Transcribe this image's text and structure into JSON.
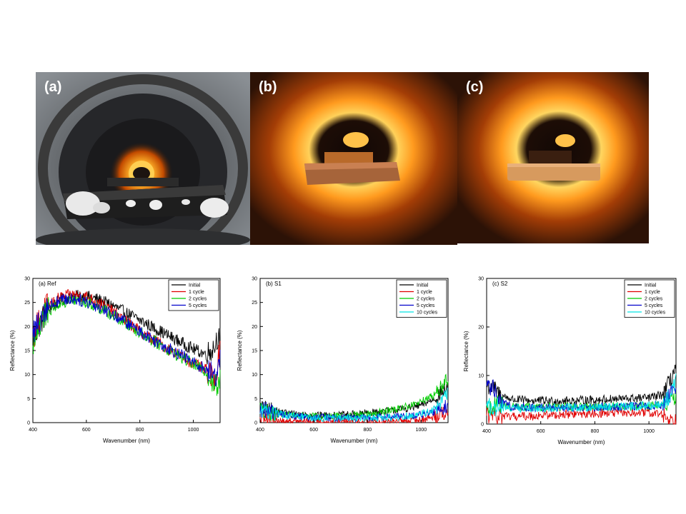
{
  "photos": [
    {
      "label": "(a)"
    },
    {
      "label": "(b)"
    },
    {
      "label": "(c)"
    }
  ],
  "chart_data": [
    {
      "type": "line",
      "panel_text": "(a) Ref",
      "xlabel": "Wavenumber (nm)",
      "ylabel": "Reflectance (%)",
      "xlim": [
        400,
        1100
      ],
      "ylim": [
        0,
        30
      ],
      "xticks": [
        400,
        600,
        800,
        1000
      ],
      "yticks": [
        0,
        5,
        10,
        15,
        20,
        25,
        30
      ],
      "legend_position": "top-right",
      "noise": 1.3,
      "series": [
        {
          "name": "Initial",
          "color": "#000000",
          "x": [
            400,
            420,
            450,
            500,
            550,
            600,
            650,
            700,
            750,
            800,
            850,
            900,
            950,
            1000,
            1050,
            1080,
            1090,
            1100
          ],
          "y": [
            17,
            20,
            23,
            25.5,
            26.3,
            26.3,
            25.5,
            24.3,
            22.8,
            21.3,
            19.8,
            18.3,
            16.8,
            15.3,
            14.2,
            16.0,
            18.0,
            17.0
          ]
        },
        {
          "name": "1 cycle",
          "color": "#e00000",
          "x": [
            400,
            420,
            450,
            500,
            550,
            600,
            650,
            700,
            750,
            800,
            850,
            900,
            950,
            1000,
            1050,
            1080,
            1090,
            1100
          ],
          "y": [
            17,
            21,
            24,
            26,
            26.6,
            26.2,
            24.8,
            23.0,
            21.0,
            19.0,
            17.2,
            15.6,
            14.0,
            12.3,
            10.8,
            9.0,
            12.0,
            16.0
          ]
        },
        {
          "name": "2 cycles",
          "color": "#00cc00",
          "x": [
            400,
            420,
            450,
            500,
            550,
            600,
            650,
            700,
            750,
            800,
            850,
            900,
            950,
            1000,
            1050,
            1080,
            1090,
            1100
          ],
          "y": [
            16.5,
            20,
            23,
            24.8,
            25.5,
            25.0,
            23.8,
            22.3,
            20.5,
            18.8,
            17.0,
            15.4,
            13.8,
            12.2,
            10.5,
            8.0,
            7.0,
            9.0
          ]
        },
        {
          "name": "5 cycles",
          "color": "#0000cc",
          "x": [
            400,
            420,
            450,
            500,
            550,
            600,
            650,
            700,
            750,
            800,
            850,
            900,
            950,
            1000,
            1050,
            1080,
            1090,
            1100
          ],
          "y": [
            18,
            21,
            24,
            25.5,
            25.8,
            25.2,
            24.0,
            22.5,
            20.8,
            19.0,
            17.3,
            15.7,
            14.2,
            12.5,
            11.0,
            9.5,
            11.0,
            13.0
          ]
        }
      ]
    },
    {
      "type": "line",
      "panel_text": "(b) S1",
      "xlabel": "Wavenumber (nm)",
      "ylabel": "Reflectance (%)",
      "xlim": [
        400,
        1100
      ],
      "ylim": [
        0,
        30
      ],
      "xticks": [
        400,
        600,
        800,
        1000
      ],
      "yticks": [
        0,
        5,
        10,
        15,
        20,
        25,
        30
      ],
      "legend_position": "top-right",
      "noise": 0.8,
      "series": [
        {
          "name": "Initial",
          "color": "#000000",
          "x": [
            400,
            450,
            500,
            600,
            700,
            800,
            850,
            900,
            950,
            1000,
            1050,
            1080,
            1100
          ],
          "y": [
            3.0,
            2.5,
            2.0,
            1.5,
            1.5,
            2.0,
            2.3,
            2.6,
            3.0,
            3.6,
            5.0,
            6.5,
            7.5
          ]
        },
        {
          "name": "1 cycle",
          "color": "#e00000",
          "x": [
            400,
            450,
            500,
            600,
            700,
            800,
            900,
            1000,
            1050,
            1080,
            1100
          ],
          "y": [
            0.3,
            0.3,
            0.2,
            0.2,
            0.2,
            0.2,
            0.2,
            0.6,
            1.2,
            2.0,
            2.5
          ]
        },
        {
          "name": "2 cycles",
          "color": "#00cc00",
          "x": [
            400,
            450,
            500,
            600,
            700,
            800,
            850,
            900,
            950,
            1000,
            1050,
            1080,
            1100
          ],
          "y": [
            2.5,
            2.0,
            1.6,
            1.3,
            1.3,
            1.8,
            2.2,
            2.7,
            3.4,
            4.3,
            5.8,
            7.8,
            9.0
          ]
        },
        {
          "name": "5 cycles",
          "color": "#0000cc",
          "x": [
            400,
            450,
            500,
            600,
            700,
            800,
            900,
            1000,
            1050,
            1080,
            1100
          ],
          "y": [
            2.8,
            2.2,
            1.5,
            1.1,
            1.0,
            1.0,
            1.2,
            1.6,
            2.2,
            3.0,
            3.5
          ]
        },
        {
          "name": "10 cycles",
          "color": "#00e5e5",
          "x": [
            400,
            450,
            500,
            600,
            700,
            800,
            900,
            1000,
            1050,
            1080,
            1100
          ],
          "y": [
            2.5,
            2.0,
            1.4,
            1.0,
            1.0,
            1.0,
            1.1,
            1.8,
            2.8,
            4.5,
            6.0
          ]
        }
      ]
    },
    {
      "type": "line",
      "panel_text": "(c) S2",
      "xlabel": "Wavenumber (nm)",
      "ylabel": "Reflectance (%)",
      "xlim": [
        400,
        1100
      ],
      "ylim": [
        0,
        30
      ],
      "xticks": [
        400,
        600,
        800,
        1000
      ],
      "yticks": [
        0,
        10,
        20,
        30
      ],
      "legend_position": "top-right",
      "noise": 0.9,
      "series": [
        {
          "name": "Initial",
          "color": "#000000",
          "x": [
            400,
            420,
            450,
            500,
            600,
            700,
            800,
            900,
            1000,
            1050,
            1080,
            1100
          ],
          "y": [
            8.0,
            7.5,
            6.0,
            5.0,
            4.8,
            4.8,
            5.0,
            5.2,
            5.4,
            6.0,
            9.0,
            12.0
          ]
        },
        {
          "name": "1 cycle",
          "color": "#e00000",
          "x": [
            400,
            450,
            500,
            600,
            700,
            800,
            900,
            1000,
            1050,
            1080,
            1100
          ],
          "y": [
            1.5,
            1.5,
            1.5,
            1.8,
            2.0,
            2.2,
            2.3,
            2.3,
            2.0,
            0.8,
            0.5
          ]
        },
        {
          "name": "2 cycles",
          "color": "#00cc00",
          "x": [
            400,
            450,
            500,
            600,
            700,
            800,
            900,
            1000,
            1050,
            1080,
            1100
          ],
          "y": [
            4.0,
            4.0,
            3.5,
            3.5,
            3.5,
            3.6,
            3.7,
            3.8,
            4.0,
            5.0,
            6.0
          ]
        },
        {
          "name": "5 cycles",
          "color": "#0000cc",
          "x": [
            400,
            420,
            450,
            500,
            600,
            700,
            800,
            900,
            1000,
            1050,
            1080,
            1100
          ],
          "y": [
            7.0,
            8.0,
            4.5,
            3.5,
            3.4,
            3.4,
            3.5,
            3.6,
            3.7,
            4.0,
            6.0,
            8.0
          ]
        },
        {
          "name": "10 cycles",
          "color": "#00e5e5",
          "x": [
            400,
            450,
            500,
            600,
            700,
            800,
            900,
            1000,
            1050,
            1080,
            1100
          ],
          "y": [
            3.5,
            3.5,
            3.3,
            3.3,
            3.4,
            3.5,
            3.6,
            3.8,
            4.0,
            6.0,
            9.0
          ]
        }
      ]
    }
  ]
}
